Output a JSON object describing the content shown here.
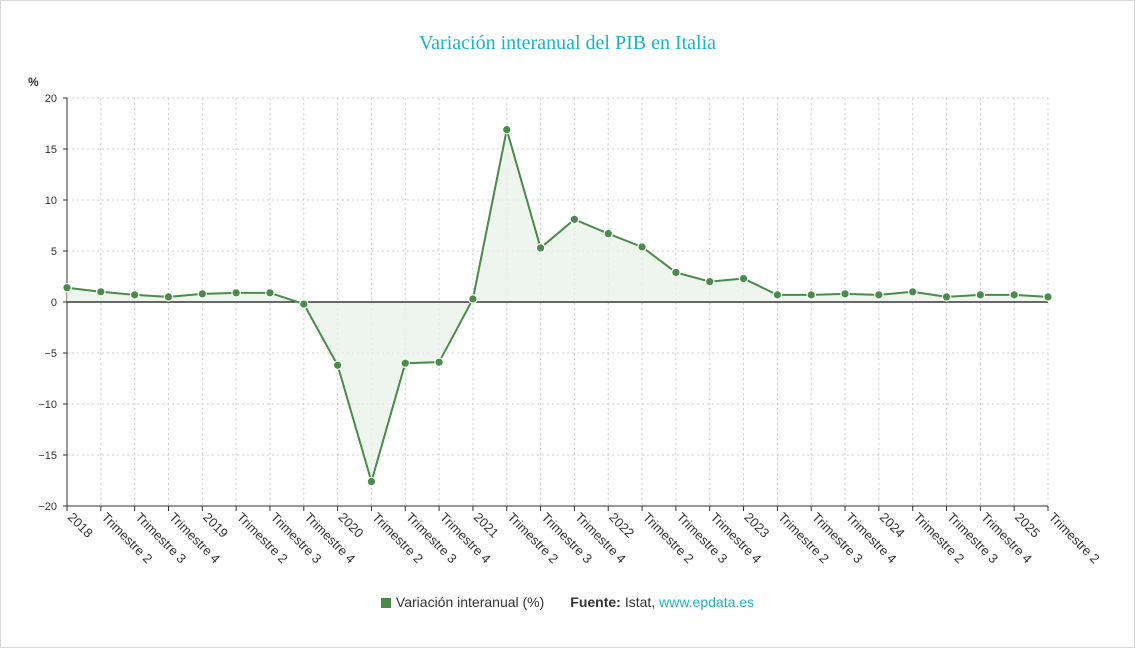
{
  "colors": {
    "series": "#4a8a4a",
    "area": "#eaf3ea",
    "title": "#1bb3c8",
    "link": "#1bb3c8",
    "grid": "#cccccc",
    "axis": "#333333"
  },
  "footer": {
    "legend_label": "Variación interanual (%)",
    "source_label": "Fuente:",
    "source_name": "Istat,",
    "source_link": "www.epdata.es"
  },
  "chart_data": {
    "type": "line",
    "title": "Variación interanual del PIB en Italia",
    "ylabel": "%",
    "ylim": [
      -20,
      20
    ],
    "yticks": [
      20,
      15,
      10,
      5,
      0,
      -5,
      -10,
      -15,
      -20
    ],
    "ytick_labels": [
      "20",
      "15",
      "10",
      "5",
      "0",
      "−5",
      "−10",
      "−15",
      "−20"
    ],
    "grid": true,
    "area_fill": true,
    "legend_position": "bottom",
    "categories": [
      "2018",
      "Trimestre 2",
      "Trimestre 3",
      "Trimestre 4",
      "2019",
      "Trimestre 2",
      "Trimestre 3",
      "Trimestre 4",
      "2020",
      "Trimestre 2",
      "Trimestre 3",
      "Trimestre 4",
      "2021",
      "Trimestre 2",
      "Trimestre 3",
      "Trimestre 4",
      "2022",
      "Trimestre 2",
      "Trimestre 3",
      "Trimestre 4",
      "2023",
      "Trimestre 2",
      "Trimestre 3",
      "Trimestre 4",
      "2024",
      "Trimestre 2",
      "Trimestre 3",
      "Trimestre 4",
      "2025",
      "Trimestre 2"
    ],
    "series": [
      {
        "name": "Variación interanual (%)",
        "values": [
          1.4,
          1.0,
          0.7,
          0.5,
          0.8,
          0.9,
          0.9,
          -0.2,
          -6.2,
          -17.6,
          -6.0,
          -5.9,
          0.3,
          16.9,
          5.3,
          8.1,
          6.7,
          5.4,
          2.9,
          2.0,
          2.3,
          0.7,
          0.7,
          0.8,
          0.7,
          1.0,
          0.5,
          0.7,
          0.7,
          0.5
        ]
      }
    ]
  }
}
